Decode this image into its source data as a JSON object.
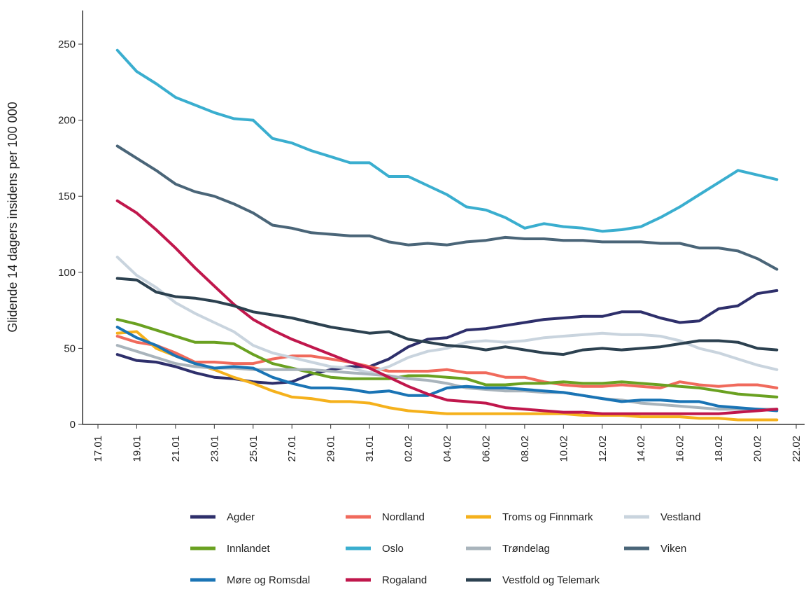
{
  "chart_data": {
    "type": "line",
    "y_label": "Glidende 14 dagers insidens per 100 000",
    "categories": [
      "17.01",
      null,
      "19.01",
      null,
      "21.01",
      null,
      "23.01",
      null,
      "25.01",
      null,
      "27.01",
      null,
      "29.01",
      null,
      "31.01",
      null,
      "02.02",
      null,
      "04.02",
      null,
      "06.02",
      null,
      "08.02",
      null,
      "10.02",
      null,
      "12.02",
      null,
      "14.02",
      null,
      "16.02",
      null,
      "18.02",
      null,
      "20.02",
      null,
      "22.02"
    ],
    "ylim": [
      0,
      260
    ],
    "yticks": [
      0,
      50,
      100,
      150,
      200,
      250
    ],
    "series": [
      {
        "name": "Agder",
        "color": "#2e2f6b",
        "values": [
          null,
          46,
          42,
          41,
          38,
          34,
          31,
          30,
          28,
          27,
          28,
          33,
          36,
          38,
          38,
          43,
          51,
          56,
          57,
          62,
          63,
          65,
          67,
          69,
          70,
          71,
          71,
          74,
          74,
          70,
          67,
          68,
          76,
          78,
          86,
          88,
          null
        ]
      },
      {
        "name": "Nordland",
        "color": "#f06a5c",
        "values": [
          null,
          58,
          54,
          52,
          47,
          41,
          41,
          40,
          40,
          43,
          45,
          45,
          43,
          41,
          38,
          35,
          35,
          35,
          36,
          34,
          34,
          31,
          31,
          28,
          26,
          25,
          25,
          26,
          25,
          24,
          28,
          26,
          25,
          26,
          26,
          24,
          null
        ]
      },
      {
        "name": "Troms og Finnmark",
        "color": "#f5b11c",
        "values": [
          null,
          60,
          61,
          50,
          45,
          40,
          36,
          31,
          27,
          22,
          18,
          17,
          15,
          15,
          14,
          11,
          9,
          8,
          7,
          7,
          7,
          7,
          7,
          7,
          7,
          6,
          6,
          6,
          5,
          5,
          5,
          4,
          4,
          3,
          3,
          3,
          null
        ]
      },
      {
        "name": "Vestland",
        "color": "#c9d4de",
        "values": [
          null,
          110,
          98,
          90,
          80,
          73,
          67,
          61,
          52,
          47,
          44,
          41,
          38,
          37,
          34,
          38,
          44,
          48,
          50,
          54,
          55,
          54,
          55,
          57,
          58,
          59,
          60,
          59,
          59,
          58,
          55,
          50,
          47,
          43,
          39,
          36,
          null
        ]
      },
      {
        "name": "Innlandet",
        "color": "#6aa121",
        "values": [
          null,
          69,
          66,
          62,
          58,
          54,
          54,
          53,
          46,
          40,
          37,
          34,
          31,
          30,
          30,
          30,
          32,
          32,
          31,
          30,
          26,
          26,
          27,
          27,
          28,
          27,
          27,
          28,
          27,
          26,
          25,
          24,
          22,
          20,
          19,
          18,
          null
        ]
      },
      {
        "name": "Oslo",
        "color": "#3aaecf",
        "values": [
          null,
          246,
          232,
          224,
          215,
          210,
          205,
          201,
          200,
          188,
          185,
          180,
          176,
          172,
          172,
          163,
          163,
          157,
          151,
          143,
          141,
          136,
          129,
          132,
          130,
          129,
          127,
          128,
          130,
          136,
          143,
          151,
          159,
          167,
          164,
          161,
          null
        ]
      },
      {
        "name": "Trøndelag",
        "color": "#a9b4bc",
        "values": [
          null,
          52,
          48,
          44,
          40,
          38,
          37,
          37,
          36,
          36,
          36,
          36,
          35,
          34,
          33,
          32,
          30,
          29,
          27,
          24,
          23,
          22,
          22,
          21,
          21,
          19,
          17,
          16,
          14,
          13,
          12,
          11,
          10,
          10,
          10,
          10,
          null
        ]
      },
      {
        "name": "Viken",
        "color": "#4a6578",
        "values": [
          null,
          183,
          175,
          167,
          158,
          153,
          150,
          145,
          139,
          131,
          129,
          126,
          125,
          124,
          124,
          120,
          118,
          119,
          118,
          120,
          121,
          123,
          122,
          122,
          121,
          121,
          120,
          120,
          120,
          119,
          119,
          116,
          116,
          114,
          109,
          102,
          null
        ]
      },
      {
        "name": "Møre og Romsdal",
        "color": "#1a74b5",
        "values": [
          null,
          64,
          57,
          52,
          45,
          40,
          37,
          38,
          37,
          31,
          27,
          24,
          24,
          23,
          21,
          22,
          19,
          19,
          24,
          25,
          24,
          24,
          23,
          22,
          21,
          19,
          17,
          15,
          16,
          16,
          15,
          15,
          12,
          11,
          10,
          9,
          null
        ]
      },
      {
        "name": "Rogaland",
        "color": "#c0174c",
        "values": [
          null,
          147,
          139,
          128,
          116,
          103,
          91,
          79,
          69,
          62,
          56,
          51,
          46,
          41,
          37,
          31,
          25,
          20,
          16,
          15,
          14,
          11,
          10,
          9,
          8,
          8,
          7,
          7,
          7,
          7,
          7,
          7,
          7,
          8,
          9,
          10,
          null
        ]
      },
      {
        "name": "Vestfold og Telemark",
        "color": "#2c4150",
        "values": [
          null,
          96,
          95,
          87,
          84,
          83,
          81,
          78,
          74,
          72,
          70,
          67,
          64,
          62,
          60,
          61,
          56,
          54,
          52,
          51,
          49,
          51,
          49,
          47,
          46,
          49,
          50,
          49,
          50,
          51,
          53,
          55,
          55,
          54,
          50,
          49,
          null
        ]
      }
    ]
  }
}
